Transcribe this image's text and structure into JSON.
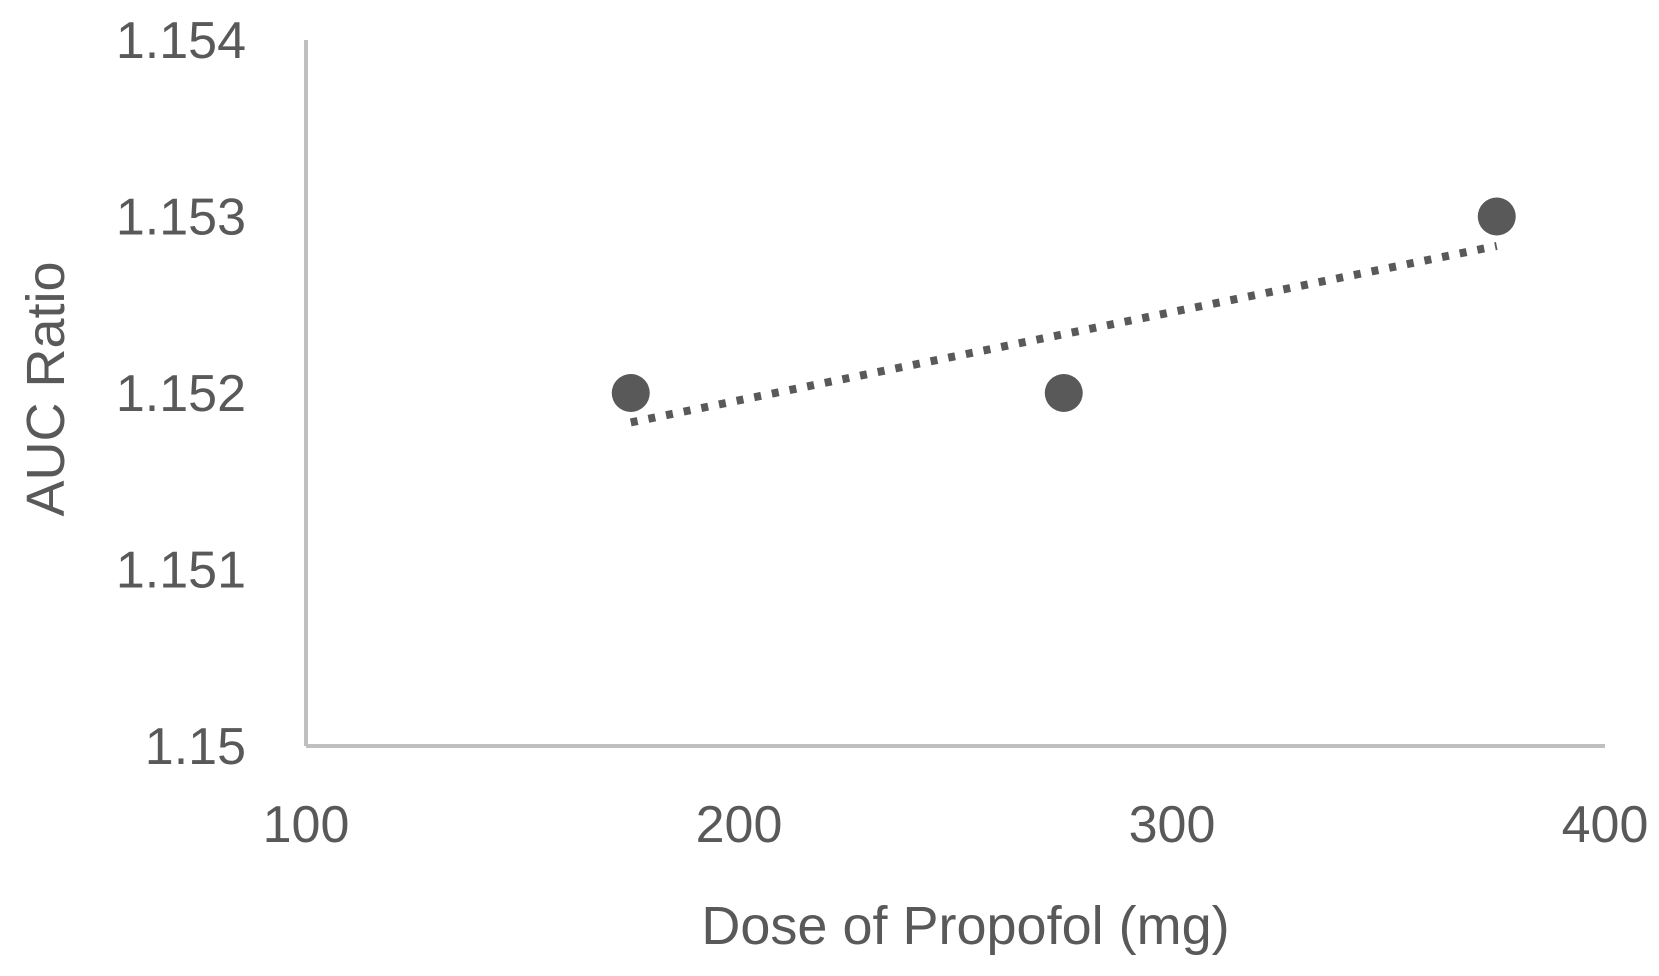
{
  "chart_data": {
    "type": "scatter",
    "title": "",
    "xlabel": "Dose of Propofol (mg)",
    "ylabel": "AUC Ratio",
    "xlim": [
      100,
      400
    ],
    "ylim": [
      1.15,
      1.154
    ],
    "x_ticks": [
      100,
      200,
      300,
      400
    ],
    "y_ticks": [
      1.15,
      1.151,
      1.152,
      1.153,
      1.154
    ],
    "x_tick_labels": [
      "100",
      "200",
      "300",
      "400"
    ],
    "y_tick_labels": [
      "1.15",
      "1.151",
      "1.152",
      "1.153",
      "1.154"
    ],
    "series": [
      {
        "points": [
          {
            "x": 175,
            "y": 1.152
          },
          {
            "x": 275,
            "y": 1.152
          },
          {
            "x": 375,
            "y": 1.153
          }
        ],
        "color": "#595959"
      }
    ],
    "trendline": {
      "type": "linear",
      "style": "dotted",
      "color": "#595959",
      "x_start": 175,
      "x_end": 375
    },
    "grid": false,
    "legend": "none",
    "axis_color": "#bfbfbf"
  }
}
